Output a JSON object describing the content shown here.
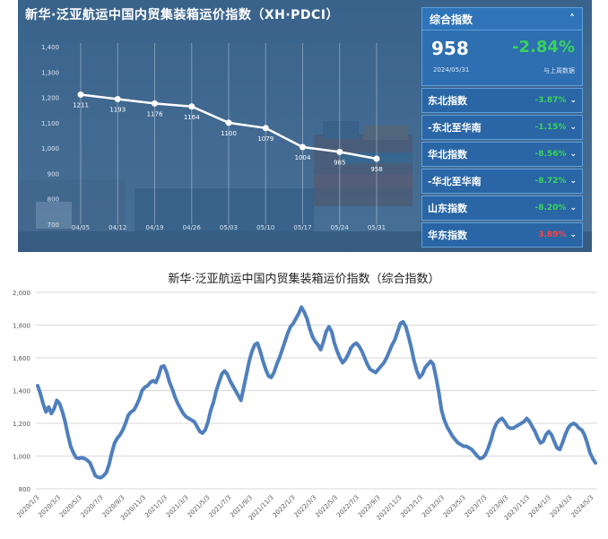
{
  "top": {
    "title": "新华·泛亚航运中国内贸集装箱运价指数（XH·PDCI）",
    "panel": {
      "header_label": "综合指数",
      "value": "958",
      "change": "-2.84%",
      "date": "2024/05/31",
      "compare_label": "与上周数据",
      "rows": [
        {
          "name": "东北指数",
          "pct": "-3.87%",
          "dir": "down"
        },
        {
          "name": "-东北至华南",
          "pct": "-1.15%",
          "dir": "down"
        },
        {
          "name": "华北指数",
          "pct": "-8.56%",
          "dir": "down"
        },
        {
          "name": "-华北至华南",
          "pct": "-8.72%",
          "dir": "down"
        },
        {
          "name": "山东指数",
          "pct": "-8.20%",
          "dir": "down"
        },
        {
          "name": "华东指数",
          "pct": "3.89%",
          "dir": "up"
        }
      ]
    }
  },
  "chart_data": [
    {
      "type": "line",
      "title": "",
      "x": [
        "04/05",
        "04/12",
        "04/19",
        "04/26",
        "05/03",
        "05/10",
        "05/17",
        "05/24",
        "05/31"
      ],
      "values": [
        1211,
        1193,
        1176,
        1164,
        1100,
        1079,
        1004,
        985,
        958
      ],
      "yticks": [
        "1,400",
        "1,300",
        "1,200",
        "1,100",
        "1,000",
        "900",
        "800",
        "700"
      ],
      "ylim": [
        700,
        1400
      ],
      "grid": "vertical",
      "colors": {
        "line": "#ffffff",
        "point": "#ffffff"
      }
    },
    {
      "type": "line",
      "title": "新华·泛亚航运中国内贸集装箱运价指数（综合指数）",
      "xlabel": "",
      "ylabel": "",
      "ylim": [
        800,
        2000
      ],
      "yticks": [
        "800",
        "1,000",
        "1,200",
        "1,400",
        "1,600",
        "1,800",
        "2,000"
      ],
      "xticks": [
        "2020/1/3",
        "2020/3/3",
        "2020/5/3",
        "2020/7/3",
        "2020/9/3",
        "2020/11/3",
        "2021/1/3",
        "2021/3/3",
        "2021/5/3",
        "2021/7/3",
        "2021/9/3",
        "2021/11/3",
        "2022/1/3",
        "2022/3/3",
        "2022/5/3",
        "2022/7/3",
        "2022/9/3",
        "2022/11/3",
        "2023/1/3",
        "2023/3/3",
        "2023/5/3",
        "2023/7/3",
        "2023/9/3",
        "2023/11/3",
        "2024/1/3",
        "2024/3/3",
        "2024/5/3"
      ],
      "grid": "horizontal",
      "colors": {
        "line": "#4f7fbd"
      },
      "values": [
        1430,
        1380,
        1320,
        1270,
        1300,
        1260,
        1290,
        1340,
        1320,
        1270,
        1210,
        1130,
        1060,
        1020,
        990,
        985,
        990,
        985,
        975,
        960,
        920,
        880,
        870,
        868,
        880,
        900,
        950,
        1020,
        1080,
        1110,
        1130,
        1160,
        1200,
        1250,
        1270,
        1280,
        1310,
        1350,
        1400,
        1420,
        1430,
        1450,
        1460,
        1450,
        1490,
        1545,
        1550,
        1510,
        1450,
        1410,
        1360,
        1320,
        1290,
        1260,
        1240,
        1230,
        1220,
        1210,
        1180,
        1150,
        1140,
        1160,
        1210,
        1280,
        1330,
        1400,
        1450,
        1500,
        1520,
        1500,
        1460,
        1430,
        1400,
        1370,
        1340,
        1420,
        1500,
        1580,
        1640,
        1680,
        1690,
        1640,
        1580,
        1530,
        1490,
        1480,
        1510,
        1560,
        1600,
        1650,
        1700,
        1750,
        1790,
        1810,
        1840,
        1870,
        1910,
        1880,
        1840,
        1780,
        1730,
        1700,
        1680,
        1650,
        1700,
        1760,
        1790,
        1760,
        1690,
        1640,
        1600,
        1570,
        1590,
        1620,
        1660,
        1680,
        1690,
        1670,
        1640,
        1600,
        1560,
        1530,
        1520,
        1510,
        1530,
        1550,
        1570,
        1600,
        1640,
        1680,
        1710,
        1760,
        1810,
        1820,
        1790,
        1730,
        1660,
        1580,
        1520,
        1480,
        1500,
        1540,
        1560,
        1580,
        1560,
        1480,
        1390,
        1280,
        1220,
        1180,
        1150,
        1120,
        1100,
        1080,
        1070,
        1060,
        1060,
        1050,
        1040,
        1020,
        1000,
        985,
        990,
        1010,
        1050,
        1100,
        1160,
        1200,
        1220,
        1230,
        1210,
        1180,
        1170,
        1170,
        1180,
        1190,
        1200,
        1210,
        1230,
        1210,
        1180,
        1150,
        1110,
        1080,
        1090,
        1130,
        1150,
        1130,
        1090,
        1050,
        1040,
        1080,
        1130,
        1170,
        1190,
        1200,
        1190,
        1170,
        1160,
        1130,
        1080,
        1020,
        985,
        958
      ]
    }
  ]
}
